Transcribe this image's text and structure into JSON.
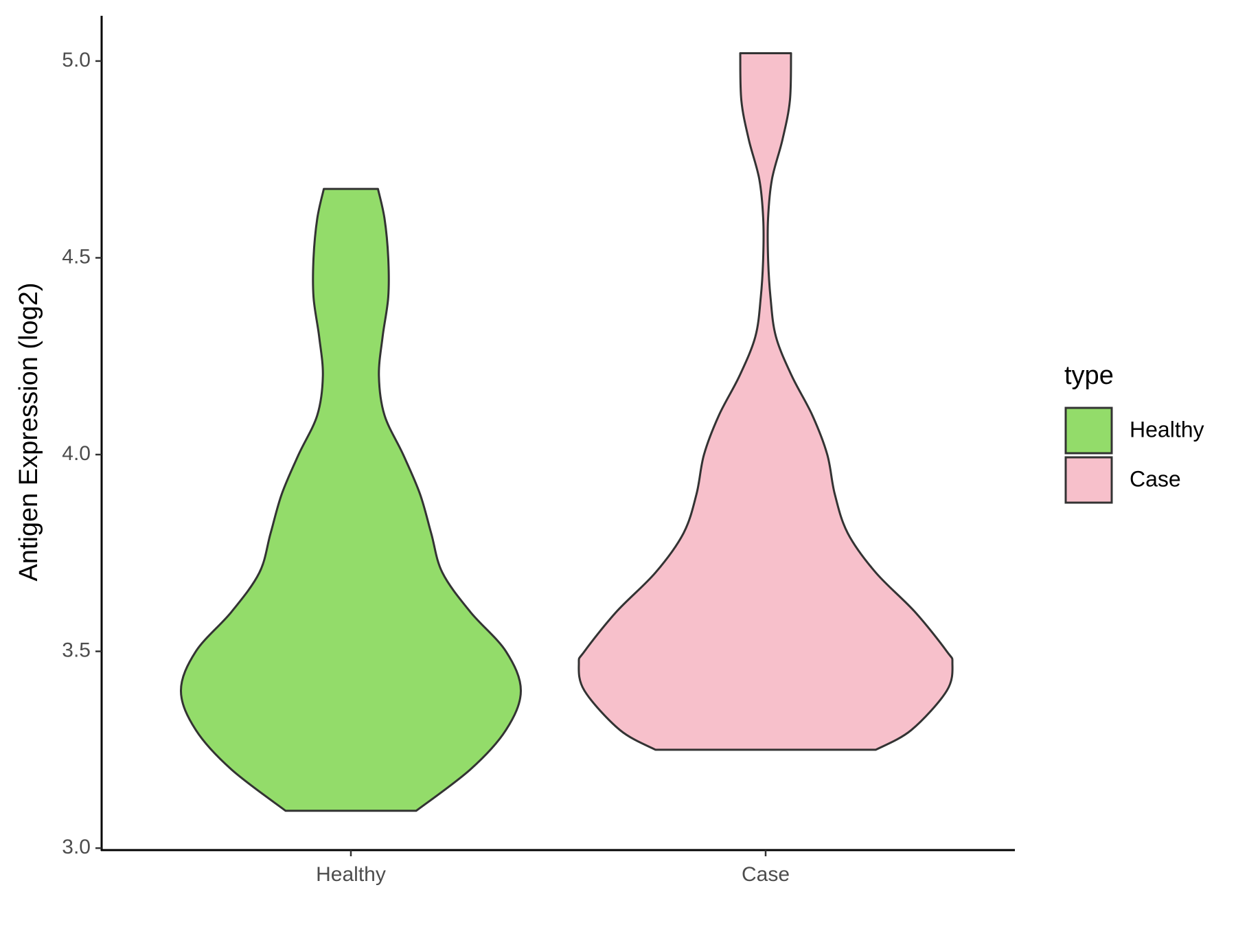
{
  "chart_data": {
    "type": "violin",
    "y_label": "Antigen Expression (log2)",
    "categories": [
      "Healthy",
      "Case"
    ],
    "series": [
      {
        "name": "Healthy",
        "color": "#93dc6a",
        "y": [
          3.095,
          3.2,
          3.3,
          3.4,
          3.5,
          3.6,
          3.7,
          3.8,
          3.9,
          4.0,
          4.1,
          4.2,
          4.3,
          4.4,
          4.5,
          4.6,
          4.675
        ],
        "density": [
          0.35,
          0.64,
          0.83,
          0.91,
          0.83,
          0.64,
          0.49,
          0.43,
          0.37,
          0.28,
          0.18,
          0.15,
          0.17,
          0.2,
          0.2,
          0.18,
          0.145
        ]
      },
      {
        "name": "Case",
        "color": "#f7c0cb",
        "y": [
          3.25,
          3.3,
          3.4,
          3.47,
          3.5,
          3.6,
          3.7,
          3.8,
          3.9,
          4.0,
          4.1,
          4.2,
          4.3,
          4.4,
          4.5,
          4.6,
          4.7,
          4.8,
          4.9,
          5.02
        ],
        "density": [
          0.59,
          0.78,
          0.97,
          1.0,
          0.97,
          0.8,
          0.59,
          0.44,
          0.37,
          0.33,
          0.25,
          0.14,
          0.055,
          0.026,
          0.013,
          0.013,
          0.034,
          0.09,
          0.13,
          0.136
        ]
      }
    ],
    "ylim": [
      2.995,
      5.115
    ],
    "yticks": [
      {
        "value": 3,
        "label": "3.0"
      },
      3.5,
      {
        "value": 4,
        "label": "4.0"
      },
      4.5,
      {
        "value": 5,
        "label": "5.0"
      }
    ],
    "legend_title": "type",
    "legend_position": "right",
    "grid": false
  }
}
